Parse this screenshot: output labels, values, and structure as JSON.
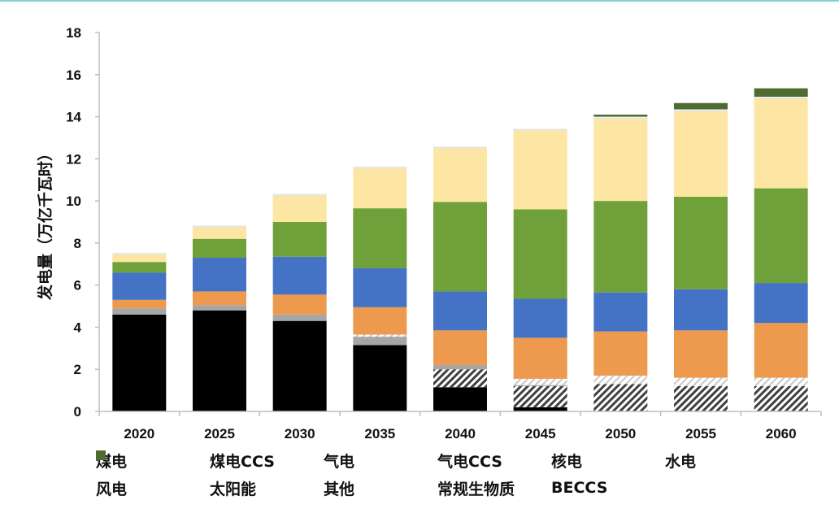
{
  "chart_data": {
    "type": "bar",
    "stacked": true,
    "ylabel": "发电量（万亿千瓦时）",
    "xlabel": "",
    "ylim": [
      0,
      18
    ],
    "yticks": [
      0,
      2,
      4,
      6,
      8,
      10,
      12,
      14,
      16,
      18
    ],
    "categories": [
      "2020",
      "2025",
      "2030",
      "2035",
      "2040",
      "2045",
      "2050",
      "2055",
      "2060"
    ],
    "series": [
      {
        "name": "煤电",
        "color": "#000000",
        "pattern": "solid",
        "values": [
          4.6,
          4.8,
          4.3,
          3.15,
          1.15,
          0.2,
          0,
          0,
          0
        ]
      },
      {
        "name": "煤电CCS",
        "color": "#404040",
        "pattern": "hatch",
        "values": [
          0,
          0,
          0,
          0,
          0.85,
          1.0,
          1.3,
          1.2,
          1.2
        ]
      },
      {
        "name": "气电",
        "color": "#a6a6a6",
        "pattern": "solid",
        "values": [
          0.3,
          0.25,
          0.3,
          0.4,
          0.2,
          0.05,
          0,
          0,
          0
        ]
      },
      {
        "name": "气电CCS",
        "color": "#d9d9d9",
        "pattern": "hatch-light",
        "values": [
          0,
          0,
          0,
          0.1,
          0,
          0.3,
          0.4,
          0.4,
          0.4
        ]
      },
      {
        "name": "核电",
        "color": "#ed9a4e",
        "pattern": "solid",
        "values": [
          0.4,
          0.65,
          0.95,
          1.3,
          1.65,
          1.95,
          2.1,
          2.25,
          2.6
        ]
      },
      {
        "name": "水电",
        "color": "#4472c4",
        "pattern": "solid",
        "values": [
          1.3,
          1.6,
          1.8,
          1.85,
          1.85,
          1.85,
          1.85,
          1.95,
          1.9
        ]
      },
      {
        "name": "风电",
        "color": "#70a03a",
        "pattern": "solid",
        "values": [
          0.5,
          0.9,
          1.65,
          2.85,
          4.25,
          4.25,
          4.35,
          4.4,
          4.5
        ]
      },
      {
        "name": "太阳能",
        "color": "#fde6a3",
        "pattern": "solid",
        "values": [
          0.35,
          0.55,
          1.25,
          1.9,
          2.55,
          3.75,
          3.9,
          4.05,
          4.25
        ]
      },
      {
        "name": "其他",
        "color": "#dedede",
        "pattern": "solid",
        "values": [
          0.05,
          0.05,
          0.05,
          0.05,
          0.05,
          0.05,
          0.05,
          0.05,
          0.05
        ]
      },
      {
        "name": "常规生物质",
        "color": "#f2f2f2",
        "pattern": "solid",
        "values": [
          0.05,
          0.05,
          0.05,
          0.05,
          0.05,
          0.05,
          0.05,
          0.05,
          0.05
        ]
      },
      {
        "name": "BECCS",
        "color": "#4e6b31",
        "pattern": "solid",
        "values": [
          0,
          0,
          0,
          0,
          0,
          0,
          0.1,
          0.3,
          0.4
        ]
      }
    ],
    "legend_position": "bottom",
    "grid": false
  }
}
